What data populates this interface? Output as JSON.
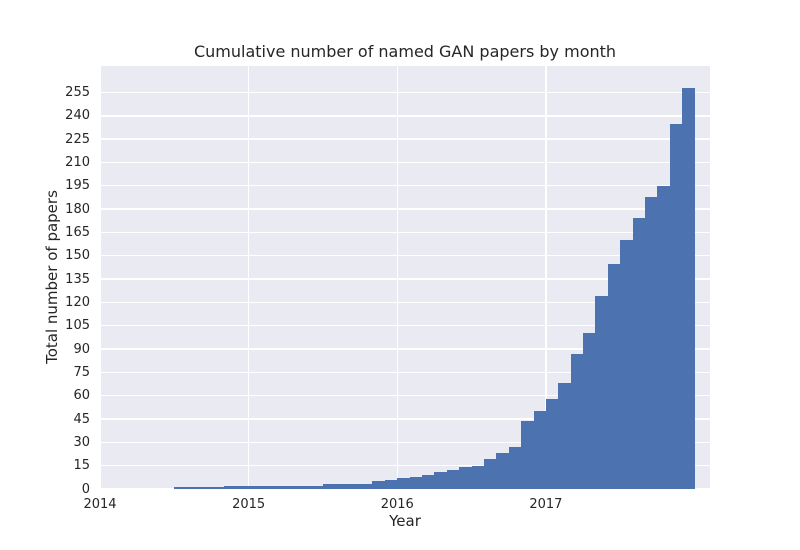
{
  "figure": {
    "title": "Cumulative number of named GAN papers by month",
    "xlabel": "Year",
    "ylabel": "Total number of papers"
  },
  "chart_data": {
    "type": "bar",
    "title": "Cumulative number of named GAN papers by month",
    "xlabel": "Year",
    "ylabel": "Total number of papers",
    "grid": true,
    "legend": false,
    "bar_color": "#4C72B0",
    "plot_bg_color": "#EAEAF2",
    "grid_color": "#FFFFFF",
    "text_color": "#262626",
    "figure_bg_color": "#FFFFFF",
    "x_tick_labels": [
      "2014",
      "2015",
      "2016",
      "2017"
    ],
    "x_tick_month_index": [
      0,
      12,
      24,
      36
    ],
    "y_ticks": [
      0,
      15,
      30,
      45,
      60,
      75,
      90,
      105,
      120,
      135,
      150,
      165,
      180,
      195,
      210,
      225,
      240,
      255
    ],
    "ylim": [
      0,
      272
    ],
    "xlim_month_index": [
      0,
      49.25
    ],
    "categories": [
      "2014-07",
      "2014-08",
      "2014-09",
      "2014-10",
      "2014-11",
      "2014-12",
      "2015-01",
      "2015-02",
      "2015-03",
      "2015-04",
      "2015-05",
      "2015-06",
      "2015-07",
      "2015-08",
      "2015-09",
      "2015-10",
      "2015-11",
      "2015-12",
      "2016-01",
      "2016-02",
      "2016-03",
      "2016-04",
      "2016-05",
      "2016-06",
      "2016-07",
      "2016-08",
      "2016-09",
      "2016-10",
      "2016-11",
      "2016-12",
      "2017-01",
      "2017-02",
      "2017-03",
      "2017-04",
      "2017-05",
      "2017-06",
      "2017-07",
      "2017-08",
      "2017-09",
      "2017-10",
      "2017-11",
      "2017-12"
    ],
    "values": [
      1,
      1,
      1,
      1,
      2,
      2,
      2,
      2,
      2,
      2,
      2,
      2,
      3,
      3,
      3,
      3,
      5,
      6,
      7,
      8,
      9,
      11,
      12,
      14,
      15,
      19,
      23,
      27,
      44,
      50,
      58,
      68,
      87,
      100,
      124,
      145,
      160,
      174,
      188,
      195,
      235,
      258
    ]
  }
}
